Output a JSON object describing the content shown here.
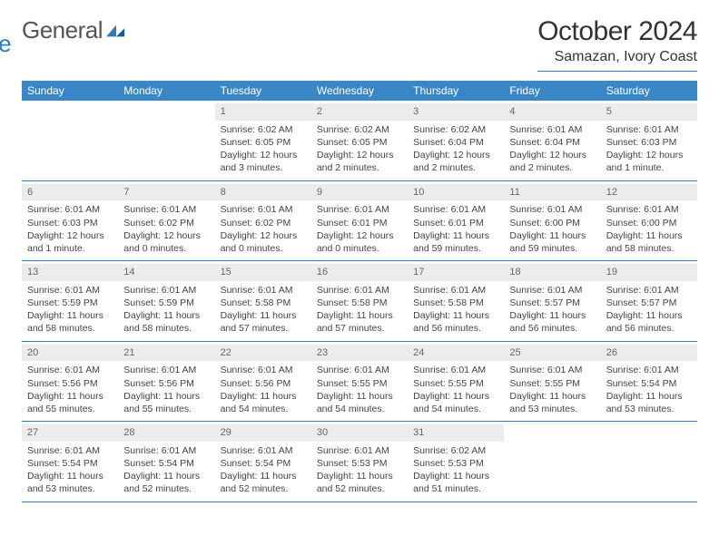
{
  "logo": {
    "part1": "General",
    "part2": "Blue"
  },
  "title": "October 2024",
  "location": "Samazan, Ivory Coast",
  "day_names": [
    "Sunday",
    "Monday",
    "Tuesday",
    "Wednesday",
    "Thursday",
    "Friday",
    "Saturday"
  ],
  "colors": {
    "header_bg": "#3a87c8",
    "accent": "#2f7bc0",
    "daynum_bg": "#ececec"
  },
  "weeks": [
    [
      null,
      null,
      {
        "n": "1",
        "sunrise": "6:02 AM",
        "sunset": "6:05 PM",
        "daylight": "12 hours and 3 minutes."
      },
      {
        "n": "2",
        "sunrise": "6:02 AM",
        "sunset": "6:05 PM",
        "daylight": "12 hours and 2 minutes."
      },
      {
        "n": "3",
        "sunrise": "6:02 AM",
        "sunset": "6:04 PM",
        "daylight": "12 hours and 2 minutes."
      },
      {
        "n": "4",
        "sunrise": "6:01 AM",
        "sunset": "6:04 PM",
        "daylight": "12 hours and 2 minutes."
      },
      {
        "n": "5",
        "sunrise": "6:01 AM",
        "sunset": "6:03 PM",
        "daylight": "12 hours and 1 minute."
      }
    ],
    [
      {
        "n": "6",
        "sunrise": "6:01 AM",
        "sunset": "6:03 PM",
        "daylight": "12 hours and 1 minute."
      },
      {
        "n": "7",
        "sunrise": "6:01 AM",
        "sunset": "6:02 PM",
        "daylight": "12 hours and 0 minutes."
      },
      {
        "n": "8",
        "sunrise": "6:01 AM",
        "sunset": "6:02 PM",
        "daylight": "12 hours and 0 minutes."
      },
      {
        "n": "9",
        "sunrise": "6:01 AM",
        "sunset": "6:01 PM",
        "daylight": "12 hours and 0 minutes."
      },
      {
        "n": "10",
        "sunrise": "6:01 AM",
        "sunset": "6:01 PM",
        "daylight": "11 hours and 59 minutes."
      },
      {
        "n": "11",
        "sunrise": "6:01 AM",
        "sunset": "6:00 PM",
        "daylight": "11 hours and 59 minutes."
      },
      {
        "n": "12",
        "sunrise": "6:01 AM",
        "sunset": "6:00 PM",
        "daylight": "11 hours and 58 minutes."
      }
    ],
    [
      {
        "n": "13",
        "sunrise": "6:01 AM",
        "sunset": "5:59 PM",
        "daylight": "11 hours and 58 minutes."
      },
      {
        "n": "14",
        "sunrise": "6:01 AM",
        "sunset": "5:59 PM",
        "daylight": "11 hours and 58 minutes."
      },
      {
        "n": "15",
        "sunrise": "6:01 AM",
        "sunset": "5:58 PM",
        "daylight": "11 hours and 57 minutes."
      },
      {
        "n": "16",
        "sunrise": "6:01 AM",
        "sunset": "5:58 PM",
        "daylight": "11 hours and 57 minutes."
      },
      {
        "n": "17",
        "sunrise": "6:01 AM",
        "sunset": "5:58 PM",
        "daylight": "11 hours and 56 minutes."
      },
      {
        "n": "18",
        "sunrise": "6:01 AM",
        "sunset": "5:57 PM",
        "daylight": "11 hours and 56 minutes."
      },
      {
        "n": "19",
        "sunrise": "6:01 AM",
        "sunset": "5:57 PM",
        "daylight": "11 hours and 56 minutes."
      }
    ],
    [
      {
        "n": "20",
        "sunrise": "6:01 AM",
        "sunset": "5:56 PM",
        "daylight": "11 hours and 55 minutes."
      },
      {
        "n": "21",
        "sunrise": "6:01 AM",
        "sunset": "5:56 PM",
        "daylight": "11 hours and 55 minutes."
      },
      {
        "n": "22",
        "sunrise": "6:01 AM",
        "sunset": "5:56 PM",
        "daylight": "11 hours and 54 minutes."
      },
      {
        "n": "23",
        "sunrise": "6:01 AM",
        "sunset": "5:55 PM",
        "daylight": "11 hours and 54 minutes."
      },
      {
        "n": "24",
        "sunrise": "6:01 AM",
        "sunset": "5:55 PM",
        "daylight": "11 hours and 54 minutes."
      },
      {
        "n": "25",
        "sunrise": "6:01 AM",
        "sunset": "5:55 PM",
        "daylight": "11 hours and 53 minutes."
      },
      {
        "n": "26",
        "sunrise": "6:01 AM",
        "sunset": "5:54 PM",
        "daylight": "11 hours and 53 minutes."
      }
    ],
    [
      {
        "n": "27",
        "sunrise": "6:01 AM",
        "sunset": "5:54 PM",
        "daylight": "11 hours and 53 minutes."
      },
      {
        "n": "28",
        "sunrise": "6:01 AM",
        "sunset": "5:54 PM",
        "daylight": "11 hours and 52 minutes."
      },
      {
        "n": "29",
        "sunrise": "6:01 AM",
        "sunset": "5:54 PM",
        "daylight": "11 hours and 52 minutes."
      },
      {
        "n": "30",
        "sunrise": "6:01 AM",
        "sunset": "5:53 PM",
        "daylight": "11 hours and 52 minutes."
      },
      {
        "n": "31",
        "sunrise": "6:02 AM",
        "sunset": "5:53 PM",
        "daylight": "11 hours and 51 minutes."
      },
      null,
      null
    ]
  ],
  "labels": {
    "sunrise_prefix": "Sunrise: ",
    "sunset_prefix": "Sunset: ",
    "daylight_prefix": "Daylight: "
  }
}
